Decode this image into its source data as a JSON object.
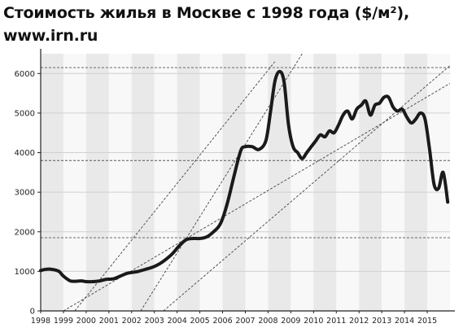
{
  "title_line1": "Стоимость жилья в Москве с 1998 года ($/м²),",
  "title_line2": "www.irn.ru",
  "chart_data": {
    "type": "line",
    "title": "Стоимость жилья в Москве с 1998 года ($/м²), www.irn.ru",
    "xlabel": "",
    "ylabel": "",
    "xlim": [
      1998.0,
      2016.0
    ],
    "ylim": [
      0,
      6500
    ],
    "yticks": [
      0,
      1000,
      2000,
      3000,
      4000,
      5000,
      6000
    ],
    "xticks": [
      "1998",
      "1999",
      "2000",
      "2001",
      "2002",
      "2003",
      "2004",
      "2005",
      "2006",
      "2007",
      "2008",
      "2009",
      "2010",
      "2011",
      "2012",
      "2013",
      "2014",
      "2015"
    ],
    "grid": true,
    "legend": "none",
    "dashed_levels": [
      1850,
      3800,
      6150
    ],
    "trend_lines": [
      [
        [
          1999.5,
          0
        ],
        [
          2008.3,
          6300
        ]
      ],
      [
        [
          2002.4,
          0
        ],
        [
          2009.5,
          6500
        ]
      ],
      [
        [
          2003.4,
          0
        ],
        [
          2016.0,
          6200
        ]
      ],
      [
        [
          1999.0,
          0
        ],
        [
          2016.0,
          5750
        ]
      ]
    ],
    "series": [
      {
        "x": [
          1998.0,
          1998.2,
          1998.5,
          1998.8,
          1999.0,
          1999.3,
          1999.6,
          1999.8,
          2000.0,
          2000.3,
          2000.6,
          2000.9,
          2001.2,
          2001.5,
          2001.8,
          2002.0,
          2002.3,
          2002.6,
          2002.9,
          2003.2,
          2003.5,
          2003.8,
          2004.1,
          2004.4,
          2004.7,
          2005.0,
          2005.3,
          2005.6,
          2005.9,
          2006.2,
          2006.5,
          2006.8,
          2007.0,
          2007.3,
          2007.6,
          2007.9,
          2008.1,
          2008.3,
          2008.5,
          2008.7,
          2008.9,
          2009.1,
          2009.3,
          2009.5,
          2009.7,
          2009.9,
          2010.1,
          2010.3,
          2010.5,
          2010.7,
          2010.9,
          2011.1,
          2011.3,
          2011.5,
          2011.7,
          2011.9,
          2012.1,
          2012.3,
          2012.5,
          2012.7,
          2012.9,
          2013.1,
          2013.3,
          2013.5,
          2013.7,
          2013.9,
          2014.1,
          2014.3,
          2014.5,
          2014.7,
          2014.9,
          2015.1,
          2015.3,
          2015.5,
          2015.7,
          2015.9
        ],
        "values": [
          1020,
          1050,
          1050,
          1000,
          880,
          760,
          750,
          760,
          740,
          740,
          760,
          800,
          810,
          880,
          950,
          970,
          1000,
          1050,
          1100,
          1180,
          1300,
          1450,
          1650,
          1800,
          1830,
          1830,
          1870,
          2000,
          2200,
          2700,
          3400,
          4050,
          4150,
          4150,
          4080,
          4300,
          5000,
          5800,
          6050,
          5800,
          4700,
          4150,
          4000,
          3850,
          4000,
          4150,
          4300,
          4450,
          4400,
          4550,
          4500,
          4700,
          4950,
          5050,
          4850,
          5100,
          5200,
          5300,
          4950,
          5200,
          5250,
          5400,
          5400,
          5150,
          5050,
          5100,
          4900,
          4750,
          4850,
          5000,
          4850,
          4100,
          3200,
          3100,
          3500,
          2750
        ]
      }
    ]
  }
}
